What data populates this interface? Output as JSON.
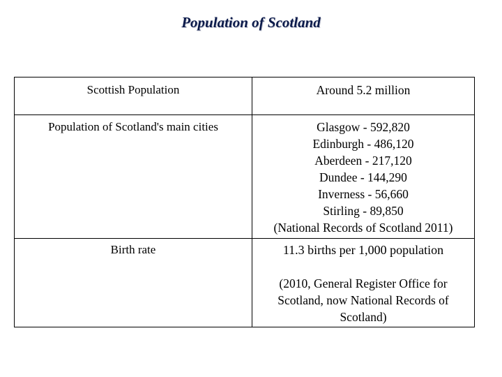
{
  "title": "Population of Scotland",
  "table": {
    "rows": [
      {
        "label": "Scottish Population",
        "value_lines": [
          "Around 5.2 million"
        ]
      },
      {
        "label": "Population of Scotland's main cities",
        "value_lines": [
          "Glasgow - 592,820",
          "Edinburgh - 486,120",
          "Aberdeen - 217,120",
          "Dundee - 144,290",
          "Inverness - 56,660",
          "Stirling - 89,850",
          "(National Records of Scotland 2011)"
        ]
      },
      {
        "label": "Birth rate",
        "value_lines": [
          "11.3 births per 1,000 population"
        ],
        "note_lines": [
          "(2010, General Register Office for",
          "Scotland, now National Records of",
          "Scotland)"
        ]
      }
    ]
  },
  "colors": {
    "title": "#0b1a4a",
    "border": "#000000",
    "text": "#000000"
  }
}
